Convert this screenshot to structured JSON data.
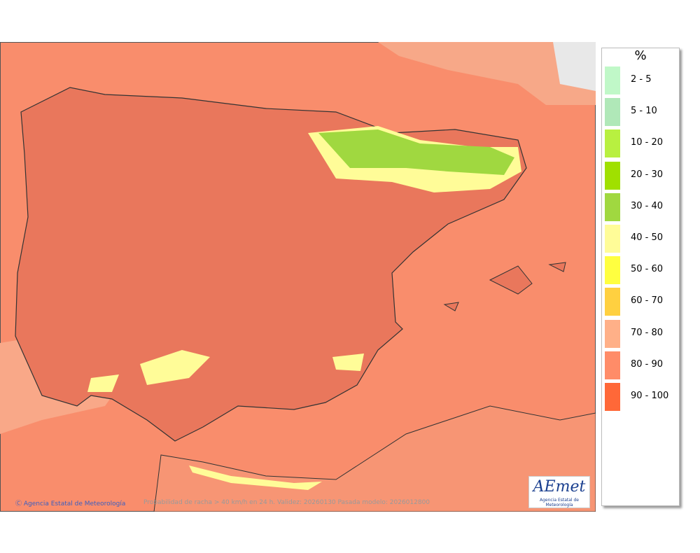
{
  "legend": {
    "title": "%",
    "items": [
      {
        "label": "2 - 5",
        "color": "#c0f8c8"
      },
      {
        "label": "5 - 10",
        "color": "#b0e8b8"
      },
      {
        "label": "10 - 20",
        "color": "#b8f040"
      },
      {
        "label": "20 - 30",
        "color": "#a0e000"
      },
      {
        "label": "30 - 40",
        "color": "#a0d840"
      },
      {
        "label": "40 - 50",
        "color": "#fffc98"
      },
      {
        "label": "50 - 60",
        "color": "#ffff40"
      },
      {
        "label": "60 - 70",
        "color": "#ffd040"
      },
      {
        "label": "70 - 80",
        "color": "#ffb088"
      },
      {
        "label": "80 - 90",
        "color": "#ff8c68"
      },
      {
        "label": "90 - 100",
        "color": "#ff6838"
      }
    ]
  },
  "map": {
    "credit": "Agencia Estatal de Meteorología",
    "caption": "Probabilidad de racha > 40 km/h en 24 h. Validez: 20260130 Pasada modelo: 2026012800"
  },
  "logo": {
    "text": "AEmet",
    "subtitle": "Agencia Estatal de Meteorología"
  }
}
